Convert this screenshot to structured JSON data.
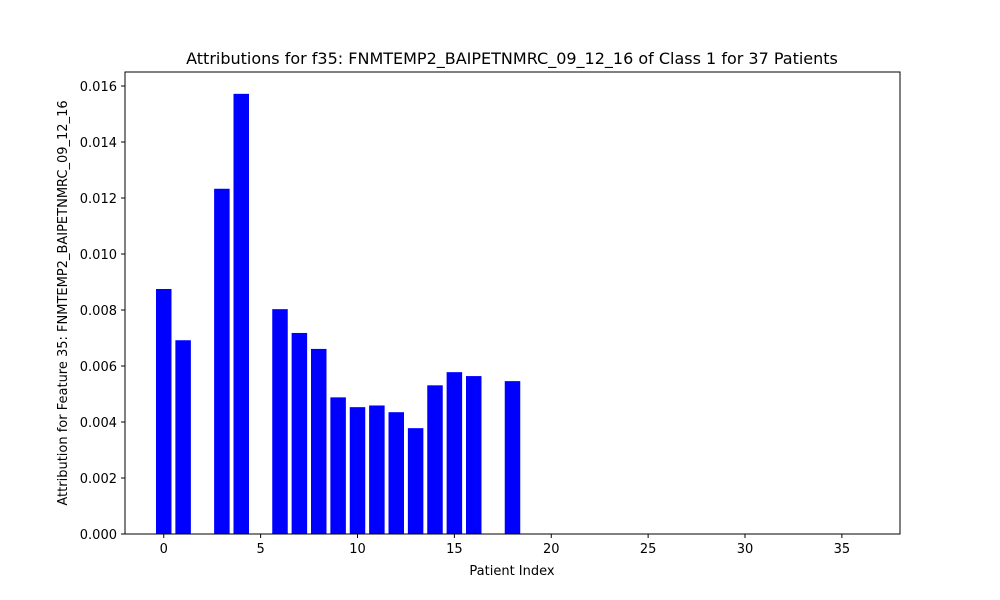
{
  "chart_data": {
    "type": "bar",
    "title": "Attributions for f35: FNMTEMP2_BAIPETNMRC_09_12_16 of Class 1 for 37 Patients",
    "xlabel": "Patient Index",
    "ylabel": "Attribution for Feature 35: FNMTEMP2_BAIPETNMRC_09_12_16",
    "xlim": [
      -2,
      38
    ],
    "ylim": [
      0,
      0.0165
    ],
    "x_ticks": [
      0,
      5,
      10,
      15,
      20,
      25,
      30,
      35
    ],
    "y_ticks": [
      0.0,
      0.002,
      0.004,
      0.006,
      0.008,
      0.01,
      0.012,
      0.014,
      0.016
    ],
    "y_tick_labels": [
      "0.000",
      "0.002",
      "0.004",
      "0.006",
      "0.008",
      "0.010",
      "0.012",
      "0.014",
      "0.016"
    ],
    "bar_color": "#0000ff",
    "grid": false,
    "x": [
      0,
      1,
      2,
      3,
      4,
      5,
      6,
      7,
      8,
      9,
      10,
      11,
      12,
      13,
      14,
      15,
      16,
      17,
      18,
      19,
      20,
      21,
      22,
      23,
      24,
      25,
      26,
      27,
      28,
      29,
      30,
      31,
      32,
      33,
      34,
      35,
      36
    ],
    "values": [
      0.00875,
      0.00692,
      0,
      0.01233,
      0.01572,
      0,
      0.00803,
      0.00718,
      0.00661,
      0.00488,
      0.00453,
      0.00459,
      0.00435,
      0.00378,
      0.00531,
      0.00578,
      0.00564,
      0,
      0.00546,
      0,
      0,
      0,
      0,
      0,
      0,
      0,
      0,
      0,
      0,
      0,
      0,
      0,
      0,
      0,
      0,
      0,
      0
    ]
  }
}
